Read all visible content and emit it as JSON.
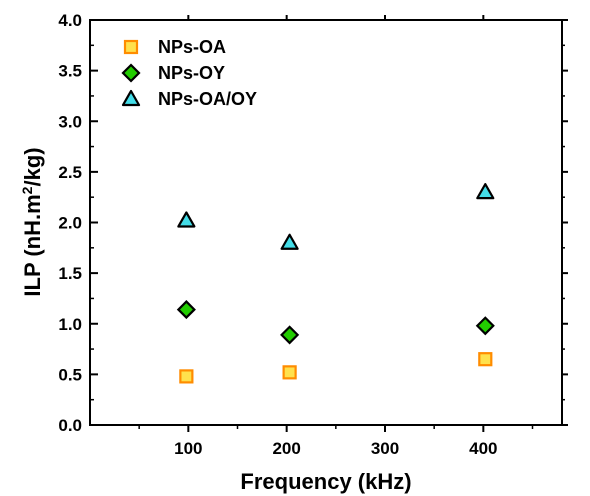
{
  "chart_data": {
    "type": "scatter",
    "xlabel": "Frequency (kHz)",
    "ylabel_main": "ILP (nH.m",
    "ylabel_sup": "2",
    "ylabel_tail": "/kg)",
    "xlim": [
      0,
      480
    ],
    "ylim": [
      0.0,
      4.0
    ],
    "x_ticks": [
      100,
      200,
      300,
      400
    ],
    "y_ticks": [
      "0.0",
      "0.5",
      "1.0",
      "1.5",
      "2.0",
      "2.5",
      "3.0",
      "3.5",
      "4.0"
    ],
    "grid": false,
    "legend_position": "top-left",
    "series": [
      {
        "name": "NPs-OA",
        "marker": "square",
        "fill": "#ffe14d",
        "stroke": "#ff8c00",
        "points": [
          [
            98,
            0.48
          ],
          [
            203,
            0.52
          ],
          [
            402,
            0.65
          ]
        ]
      },
      {
        "name": "NPs-OY",
        "marker": "diamond",
        "fill": "#22cc00",
        "stroke": "#000000",
        "points": [
          [
            98,
            1.14
          ],
          [
            203,
            0.89
          ],
          [
            402,
            0.98
          ]
        ]
      },
      {
        "name": "NPs-OA/OY",
        "marker": "triangle",
        "fill": "#44dde8",
        "stroke": "#000000",
        "points": [
          [
            98,
            2.02
          ],
          [
            203,
            1.8
          ],
          [
            402,
            2.3
          ]
        ]
      }
    ]
  }
}
